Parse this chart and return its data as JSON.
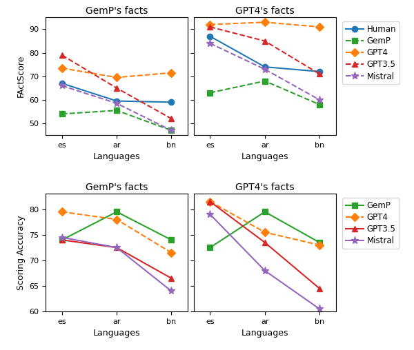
{
  "languages": [
    "es",
    "ar",
    "bn"
  ],
  "top_left": {
    "title": "GemP's facts",
    "ylabel": "FActScore",
    "series": [
      {
        "label": "Human",
        "color": "#1f77b4",
        "linestyle": "-",
        "marker": "o",
        "values": [
          67,
          59.5,
          59
        ]
      },
      {
        "label": "GemP",
        "color": "#2ca02c",
        "linestyle": "--",
        "marker": "s",
        "values": [
          54,
          55.5,
          47
        ]
      },
      {
        "label": "GPT4",
        "color": "#ff7f0e",
        "linestyle": "--",
        "marker": "D",
        "values": [
          73.5,
          69.5,
          71.5
        ]
      },
      {
        "label": "GPT3.5",
        "color": "#d62728",
        "linestyle": "--",
        "marker": "^",
        "values": [
          79,
          65,
          52
        ]
      },
      {
        "label": "Mistral",
        "color": "#9467bd",
        "linestyle": "--",
        "marker": "*",
        "values": [
          66,
          58.5,
          47
        ]
      }
    ],
    "ylim": [
      45,
      95
    ],
    "yticks": [
      50,
      60,
      70,
      80,
      90
    ]
  },
  "top_right": {
    "title": "GPT4's facts",
    "ylabel": "",
    "series": [
      {
        "label": "Human",
        "color": "#1f77b4",
        "linestyle": "-",
        "marker": "o",
        "values": [
          87,
          74,
          72
        ]
      },
      {
        "label": "GemP",
        "color": "#2ca02c",
        "linestyle": "--",
        "marker": "s",
        "values": [
          63,
          68,
          58
        ]
      },
      {
        "label": "GPT4",
        "color": "#ff7f0e",
        "linestyle": "--",
        "marker": "D",
        "values": [
          92,
          93,
          91
        ]
      },
      {
        "label": "GPT3.5",
        "color": "#d62728",
        "linestyle": "--",
        "marker": "^",
        "values": [
          91,
          85,
          71
        ]
      },
      {
        "label": "Mistral",
        "color": "#9467bd",
        "linestyle": "--",
        "marker": "*",
        "values": [
          84,
          73,
          60
        ]
      }
    ],
    "ylim": [
      45,
      95
    ],
    "yticks": [
      50,
      60,
      70,
      80,
      90
    ]
  },
  "bottom_left": {
    "title": "GemP's facts",
    "ylabel": "Scoring Accuracy",
    "series": [
      {
        "label": "GemP",
        "color": "#2ca02c",
        "linestyle": "-",
        "marker": "s",
        "values": [
          74,
          79.5,
          74
        ]
      },
      {
        "label": "GPT4",
        "color": "#ff7f0e",
        "linestyle": "--",
        "marker": "D",
        "values": [
          79.5,
          78,
          71.5
        ]
      },
      {
        "label": "GPT3.5",
        "color": "#d62728",
        "linestyle": "-",
        "marker": "^",
        "values": [
          74,
          72.5,
          66.5
        ]
      },
      {
        "label": "Mistral",
        "color": "#9467bd",
        "linestyle": "-",
        "marker": "*",
        "values": [
          74.5,
          72.5,
          64
        ]
      }
    ],
    "ylim": [
      60,
      83
    ],
    "yticks": [
      60,
      65,
      70,
      75,
      80
    ]
  },
  "bottom_right": {
    "title": "GPT4's facts",
    "ylabel": "",
    "series": [
      {
        "label": "GemP",
        "color": "#2ca02c",
        "linestyle": "-",
        "marker": "s",
        "values": [
          72.5,
          79.5,
          73.5
        ]
      },
      {
        "label": "GPT4",
        "color": "#ff7f0e",
        "linestyle": "--",
        "marker": "D",
        "values": [
          81.5,
          75.5,
          73
        ]
      },
      {
        "label": "GPT3.5",
        "color": "#d62728",
        "linestyle": "-",
        "marker": "^",
        "values": [
          81.5,
          73.5,
          64.5
        ]
      },
      {
        "label": "Mistral",
        "color": "#9467bd",
        "linestyle": "-",
        "marker": "*",
        "values": [
          79,
          68,
          60.5
        ]
      }
    ],
    "ylim": [
      60,
      83
    ],
    "yticks": [
      60,
      65,
      70,
      75,
      80
    ]
  },
  "top_legend": {
    "entries": [
      {
        "label": "Human",
        "color": "#1f77b4",
        "linestyle": "-",
        "marker": "o"
      },
      {
        "label": "GemP",
        "color": "#2ca02c",
        "linestyle": "--",
        "marker": "s"
      },
      {
        "label": "GPT4",
        "color": "#ff7f0e",
        "linestyle": "--",
        "marker": "D"
      },
      {
        "label": "GPT3.5",
        "color": "#d62728",
        "linestyle": "--",
        "marker": "^"
      },
      {
        "label": "Mistral",
        "color": "#9467bd",
        "linestyle": "--",
        "marker": "*"
      }
    ]
  },
  "bottom_legend": {
    "entries": [
      {
        "label": "GemP",
        "color": "#2ca02c",
        "linestyle": "-",
        "marker": "s"
      },
      {
        "label": "GPT4",
        "color": "#ff7f0e",
        "linestyle": "--",
        "marker": "D"
      },
      {
        "label": "GPT3.5",
        "color": "#d62728",
        "linestyle": "-",
        "marker": "^"
      },
      {
        "label": "Mistral",
        "color": "#9467bd",
        "linestyle": "-",
        "marker": "*"
      }
    ]
  }
}
